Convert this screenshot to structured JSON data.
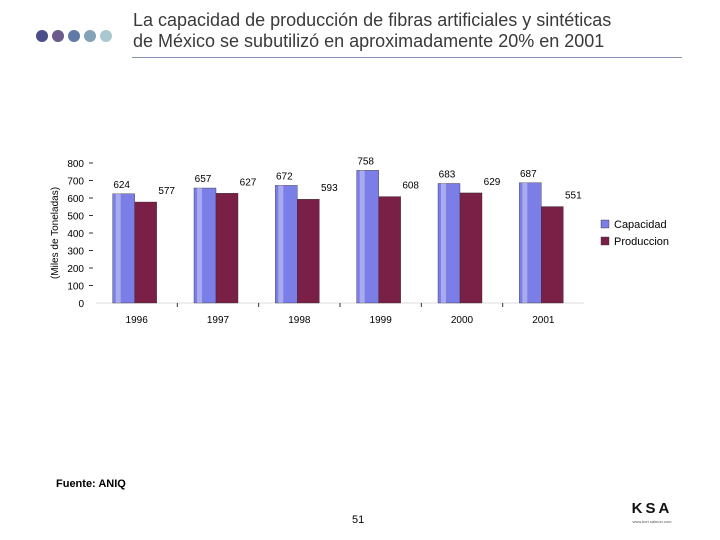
{
  "header": {
    "title_line1": "La capacidad de producción de fibras artificiales y sintéticas",
    "title_line2": "de México se subutilizó en aproximadamente 20% en 2001",
    "dot_colors": [
      "#4a4f8a",
      "#6a5a8e",
      "#5f7aa6",
      "#83a3b8",
      "#a9c8d0"
    ]
  },
  "footer": {
    "source": "Fuente: ANIQ",
    "page_number": "51",
    "logo_mark": "KSA",
    "logo_sub": "www.kurt salmon.com"
  },
  "chart_data": {
    "type": "bar",
    "title": "",
    "xlabel": "",
    "ylabel": "(Miles de Toneladas)",
    "ylim": [
      0,
      800
    ],
    "yticks": [
      0,
      100,
      200,
      300,
      400,
      500,
      600,
      700,
      800
    ],
    "categories": [
      "1996",
      "1997",
      "1998",
      "1999",
      "2000",
      "2001"
    ],
    "series": [
      {
        "name": "Capacidad",
        "color": "#7b7ee6",
        "values": [
          624,
          657,
          672,
          758,
          683,
          687
        ]
      },
      {
        "name": "Produccion",
        "color": "#7a1f45",
        "values": [
          577,
          627,
          593,
          608,
          629,
          551
        ]
      }
    ],
    "legend_position": "right"
  }
}
